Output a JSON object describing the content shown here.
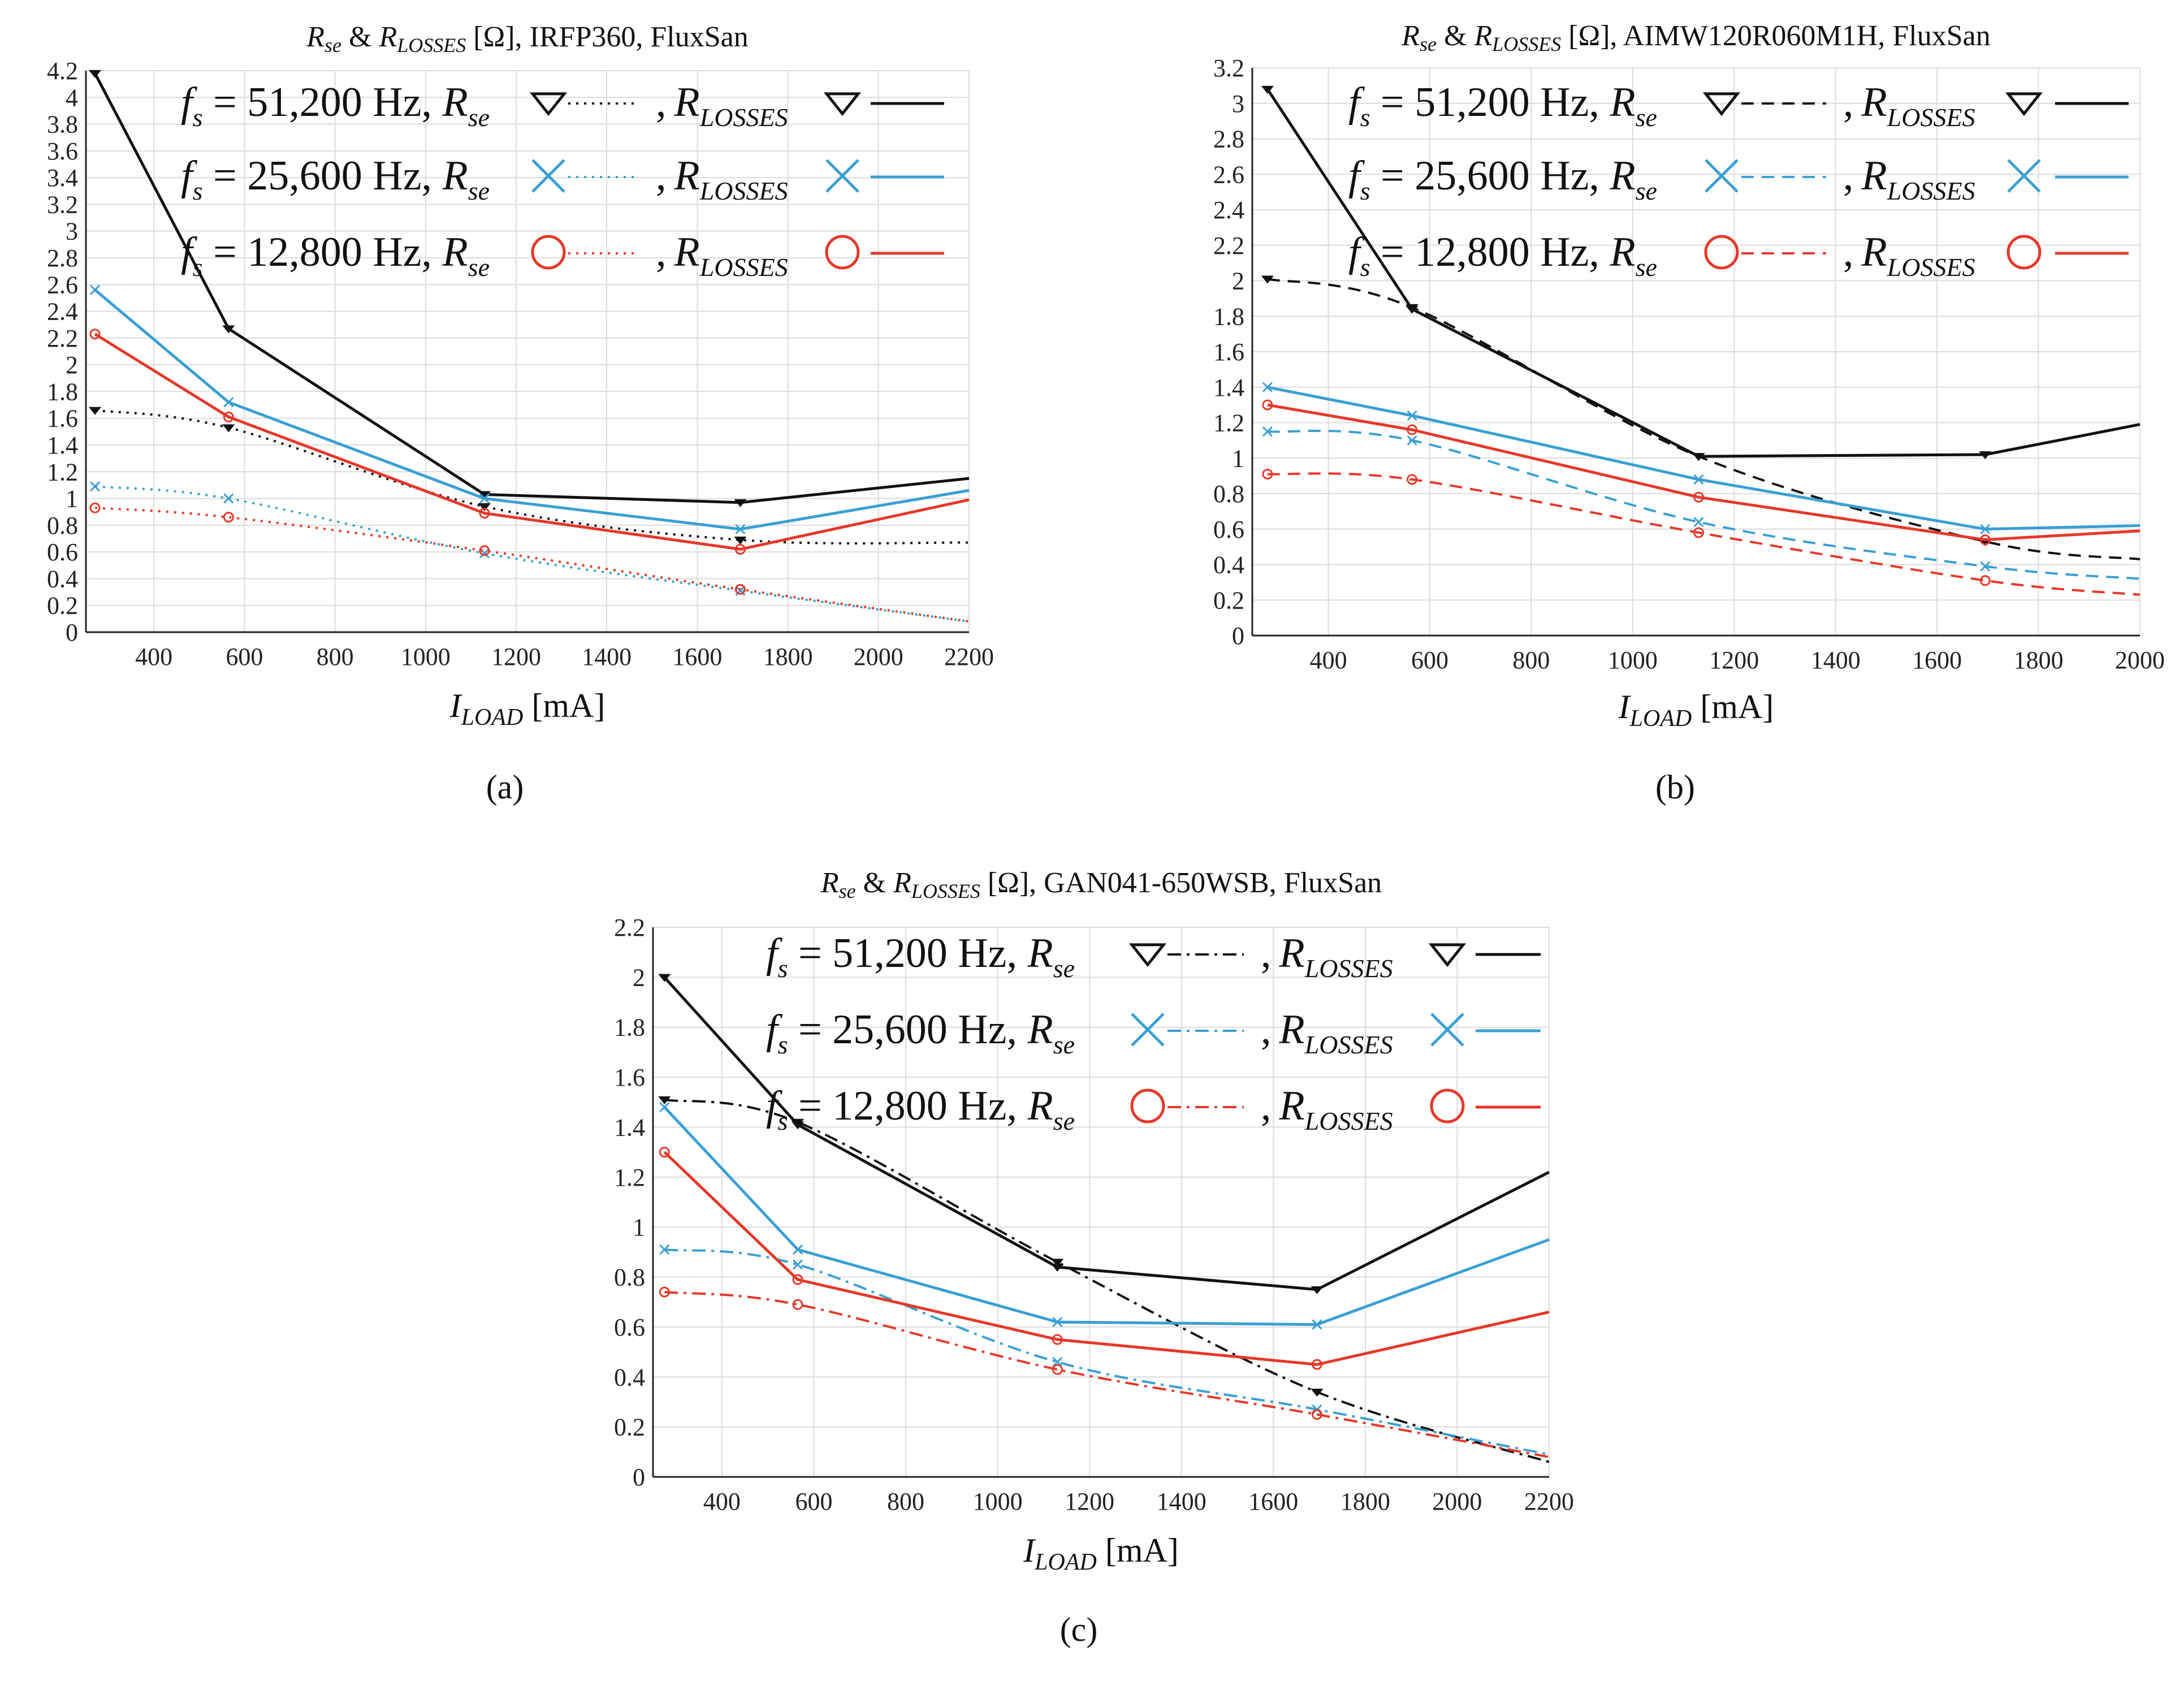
{
  "colors": {
    "f51200": "#111111",
    "f25600": "#3a9fd3",
    "f12800": "#e5382a",
    "grid": "#dcdcdc",
    "axis": "#222222"
  },
  "chart_data": [
    {
      "type": "line",
      "caption": "(a)",
      "title_parts": {
        "r": "R",
        "se": "se",
        "amp": " & ",
        "r2": "R",
        "losses": "LOSSES",
        "rest": " [Ω], IRFP360, FluxSan"
      },
      "xlabel_parts": {
        "i": "I",
        "sub": "LOAD",
        "unit": " [mA]"
      },
      "xlim": [
        250,
        2200
      ],
      "ylim": [
        0,
        4.2
      ],
      "xticks": [
        400,
        600,
        800,
        1000,
        1200,
        1400,
        1600,
        1800,
        2000,
        2200
      ],
      "xtick_labels": [
        "400",
        "600",
        "800",
        "1000",
        "1200",
        "1400",
        "1600",
        "1800",
        "2000",
        "2200"
      ],
      "yticks": [
        0,
        0.2,
        0.4,
        0.6,
        0.8,
        1,
        1.2,
        1.4,
        1.6,
        1.8,
        2,
        2.2,
        2.4,
        2.6,
        2.8,
        3,
        3.2,
        3.4,
        3.6,
        3.8,
        4,
        4.2
      ],
      "ytick_labels": [
        "0",
        "0.2",
        "0.4",
        "0.6",
        "0.8",
        "1",
        "1.2",
        "1.4",
        "1.6",
        "1.8",
        "2",
        "2.2",
        "2.4",
        "2.6",
        "2.8",
        "3",
        "3.2",
        "3.4",
        "3.6",
        "3.8",
        "4",
        "4.2"
      ],
      "grid": true,
      "rse_style": "dotted",
      "legend": [
        {
          "f": "f",
          "s": "s",
          "text": " = 51,200 Hz, ",
          "rse": "R",
          "rse_sub": "se",
          "comma": ",",
          "rl": "R",
          "rl_sub": "LOSSES",
          "marker": "triangle",
          "color_key": "f51200"
        },
        {
          "f": "f",
          "s": "s",
          "text": " = 25,600 Hz, ",
          "rse": "R",
          "rse_sub": "se",
          "comma": ",",
          "rl": "R",
          "rl_sub": "LOSSES",
          "marker": "x",
          "color_key": "f25600"
        },
        {
          "f": "f",
          "s": "s",
          "text": " = 12,800 Hz, ",
          "rse": "R",
          "rse_sub": "se",
          "comma": ",",
          "rl": "R",
          "rl_sub": "LOSSES",
          "marker": "circle",
          "color_key": "f12800"
        }
      ],
      "series": [
        {
          "name": "R_LOSSES 51,200 Hz",
          "color_key": "f51200",
          "style": "solid",
          "marker": "triangle",
          "x": [
            270,
            565,
            1130,
            1695,
            2200
          ],
          "y": [
            4.18,
            2.27,
            1.03,
            0.97,
            1.15
          ],
          "marked": 4
        },
        {
          "name": "R_se 51,200 Hz",
          "color_key": "f51200",
          "style": "rse",
          "marker": "triangle",
          "x": [
            270,
            565,
            1130,
            1695,
            2200
          ],
          "y": [
            1.66,
            1.53,
            0.94,
            0.69,
            0.67
          ],
          "marked": 4
        },
        {
          "name": "R_LOSSES 25,600 Hz",
          "color_key": "f25600",
          "style": "solid",
          "marker": "x",
          "x": [
            270,
            565,
            1130,
            1695,
            2200
          ],
          "y": [
            2.56,
            1.72,
            1.0,
            0.77,
            1.06
          ],
          "marked": 4
        },
        {
          "name": "R_se 25,600 Hz",
          "color_key": "f25600",
          "style": "rse",
          "marker": "x",
          "x": [
            270,
            565,
            1130,
            1695,
            2200
          ],
          "y": [
            1.09,
            1.0,
            0.59,
            0.31,
            0.08
          ],
          "marked": 4
        },
        {
          "name": "R_LOSSES 12,800 Hz",
          "color_key": "f12800",
          "style": "solid",
          "marker": "circle",
          "x": [
            270,
            565,
            1130,
            1695,
            2200
          ],
          "y": [
            2.23,
            1.61,
            0.89,
            0.62,
            0.99
          ],
          "marked": 4
        },
        {
          "name": "R_se 12,800 Hz",
          "color_key": "f12800",
          "style": "rse",
          "marker": "circle",
          "x": [
            270,
            565,
            1130,
            1695,
            2200
          ],
          "y": [
            0.93,
            0.86,
            0.61,
            0.32,
            0.08
          ],
          "marked": 4
        }
      ]
    },
    {
      "type": "line",
      "caption": "(b)",
      "title_parts": {
        "r": "R",
        "se": "se",
        "amp": " & ",
        "r2": "R",
        "losses": "LOSSES",
        "rest": " [Ω], AIMW120R060M1H, FluxSan"
      },
      "xlabel_parts": {
        "i": "I",
        "sub": "LOAD",
        "unit": " [mA]"
      },
      "xlim": [
        250,
        2000
      ],
      "ylim": [
        0,
        3.2
      ],
      "xticks": [
        400,
        600,
        800,
        1000,
        1200,
        1400,
        1600,
        1800,
        2000
      ],
      "xtick_labels": [
        "400",
        "600",
        "800",
        "1000",
        "1200",
        "1400",
        "1600",
        "1800",
        "2000"
      ],
      "yticks": [
        0,
        0.2,
        0.4,
        0.6,
        0.8,
        1,
        1.2,
        1.4,
        1.6,
        1.8,
        2,
        2.2,
        2.4,
        2.6,
        2.8,
        3,
        3.2
      ],
      "ytick_labels": [
        "0",
        "0.2",
        "0.4",
        "0.6",
        "0.8",
        "1",
        "1.2",
        "1.4",
        "1.6",
        "1.8",
        "2",
        "2.2",
        "2.4",
        "2.6",
        "2.8",
        "3",
        "3.2"
      ],
      "grid": true,
      "rse_style": "dashed",
      "legend": [
        {
          "f": "f",
          "s": "s",
          "text": " = 51,200 Hz, ",
          "rse": "R",
          "rse_sub": "se",
          "comma": ",",
          "rl": "R",
          "rl_sub": "LOSSES",
          "marker": "triangle",
          "color_key": "f51200"
        },
        {
          "f": "f",
          "s": "s",
          "text": " = 25,600 Hz, ",
          "rse": "R",
          "rse_sub": "se",
          "comma": ",",
          "rl": "R",
          "rl_sub": "LOSSES",
          "marker": "x",
          "color_key": "f25600"
        },
        {
          "f": "f",
          "s": "s",
          "text": " = 12,800 Hz, ",
          "rse": "R",
          "rse_sub": "se",
          "comma": ",",
          "rl": "R",
          "rl_sub": "LOSSES",
          "marker": "circle",
          "color_key": "f12800"
        }
      ],
      "series": [
        {
          "name": "R_LOSSES 51,200 Hz",
          "color_key": "f51200",
          "style": "solid",
          "marker": "triangle",
          "x": [
            280,
            565,
            1130,
            1695,
            2000
          ],
          "y": [
            3.08,
            1.84,
            1.01,
            1.02,
            1.19
          ],
          "marked": 4
        },
        {
          "name": "R_se 51,200 Hz",
          "color_key": "f51200",
          "style": "rse",
          "marker": "triangle",
          "x": [
            280,
            565,
            1130,
            1695,
            2000
          ],
          "y": [
            2.01,
            1.85,
            1.01,
            0.53,
            0.43
          ],
          "marked": 4
        },
        {
          "name": "R_LOSSES 25,600 Hz",
          "color_key": "f25600",
          "style": "solid",
          "marker": "x",
          "x": [
            280,
            565,
            1130,
            1695,
            2000
          ],
          "y": [
            1.4,
            1.24,
            0.88,
            0.6,
            0.62
          ],
          "marked": 4
        },
        {
          "name": "R_se 25,600 Hz",
          "color_key": "f25600",
          "style": "rse",
          "marker": "x",
          "x": [
            280,
            565,
            1130,
            1695,
            2000
          ],
          "y": [
            1.15,
            1.1,
            0.64,
            0.39,
            0.32
          ],
          "marked": 4
        },
        {
          "name": "R_LOSSES 12,800 Hz",
          "color_key": "f12800",
          "style": "solid",
          "marker": "circle",
          "x": [
            280,
            565,
            1130,
            1695,
            2000
          ],
          "y": [
            1.3,
            1.16,
            0.78,
            0.54,
            0.59
          ],
          "marked": 4
        },
        {
          "name": "R_se 12,800 Hz",
          "color_key": "f12800",
          "style": "rse",
          "marker": "circle",
          "x": [
            280,
            565,
            1130,
            1695,
            2000
          ],
          "y": [
            0.91,
            0.88,
            0.58,
            0.31,
            0.23
          ],
          "marked": 4
        }
      ]
    },
    {
      "type": "line",
      "caption": "(c)",
      "title_parts": {
        "r": "R",
        "se": "se",
        "amp": " & ",
        "r2": "R",
        "losses": "LOSSES",
        "rest": " [Ω], GAN041-650WSB, FluxSan"
      },
      "xlabel_parts": {
        "i": "I",
        "sub": "LOAD",
        "unit": " [mA]"
      },
      "xlim": [
        250,
        2200
      ],
      "ylim": [
        0,
        2.2
      ],
      "xticks": [
        400,
        600,
        800,
        1000,
        1200,
        1400,
        1600,
        1800,
        2000,
        2200
      ],
      "xtick_labels": [
        "400",
        "600",
        "800",
        "1000",
        "1200",
        "1400",
        "1600",
        "1800",
        "2000",
        "2200"
      ],
      "yticks": [
        0,
        0.2,
        0.4,
        0.6,
        0.8,
        1,
        1.2,
        1.4,
        1.6,
        1.8,
        2,
        2.2
      ],
      "ytick_labels": [
        "0",
        "0.2",
        "0.4",
        "0.6",
        "0.8",
        "1",
        "1.2",
        "1.4",
        "1.6",
        "1.8",
        "2",
        "2.2"
      ],
      "grid": true,
      "rse_style": "dashdot",
      "legend": [
        {
          "f": "f",
          "s": "s",
          "text": " = 51,200 Hz, ",
          "rse": "R",
          "rse_sub": "se",
          "comma": ",",
          "rl": "R",
          "rl_sub": "LOSSES",
          "marker": "triangle",
          "color_key": "f51200"
        },
        {
          "f": "f",
          "s": "s",
          "text": " = 25,600 Hz, ",
          "rse": "R",
          "rse_sub": "se",
          "comma": ",",
          "rl": "R",
          "rl_sub": "LOSSES",
          "marker": "x",
          "color_key": "f25600"
        },
        {
          "f": "f",
          "s": "s",
          "text": " = 12,800 Hz, ",
          "rse": "R",
          "rse_sub": "se",
          "comma": ",",
          "rl": "R",
          "rl_sub": "LOSSES",
          "marker": "circle",
          "color_key": "f12800"
        }
      ],
      "series": [
        {
          "name": "R_LOSSES 51,200 Hz",
          "color_key": "f51200",
          "style": "solid",
          "marker": "triangle",
          "x": [
            275,
            565,
            1130,
            1695,
            2200
          ],
          "y": [
            2.0,
            1.41,
            0.84,
            0.75,
            1.22
          ],
          "marked": 4
        },
        {
          "name": "R_se 51,200 Hz",
          "color_key": "f51200",
          "style": "rse",
          "marker": "triangle",
          "x": [
            275,
            565,
            1130,
            1695,
            2200
          ],
          "y": [
            1.51,
            1.42,
            0.86,
            0.34,
            0.06
          ],
          "marked": 4
        },
        {
          "name": "R_LOSSES 25,600 Hz",
          "color_key": "f25600",
          "style": "solid",
          "marker": "x",
          "x": [
            275,
            565,
            1130,
            1695,
            2200
          ],
          "y": [
            1.48,
            0.91,
            0.62,
            0.61,
            0.95
          ],
          "marked": 4
        },
        {
          "name": "R_se 25,600 Hz",
          "color_key": "f25600",
          "style": "rse",
          "marker": "x",
          "x": [
            275,
            565,
            1130,
            1695,
            2200
          ],
          "y": [
            0.91,
            0.85,
            0.46,
            0.27,
            0.09
          ],
          "marked": 4
        },
        {
          "name": "R_LOSSES 12,800 Hz",
          "color_key": "f12800",
          "style": "solid",
          "marker": "circle",
          "x": [
            275,
            565,
            1130,
            1695,
            2200
          ],
          "y": [
            1.3,
            0.79,
            0.55,
            0.45,
            0.66
          ],
          "marked": 4
        },
        {
          "name": "R_se 12,800 Hz",
          "color_key": "f12800",
          "style": "rse",
          "marker": "circle",
          "x": [
            275,
            565,
            1130,
            1695,
            2200
          ],
          "y": [
            0.74,
            0.69,
            0.43,
            0.25,
            0.08
          ],
          "marked": 4
        }
      ]
    }
  ]
}
